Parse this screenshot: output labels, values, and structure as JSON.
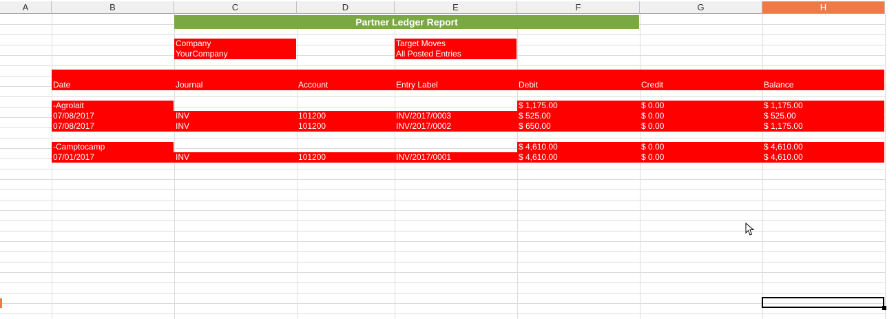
{
  "columns": [
    {
      "letter": "A",
      "active": false
    },
    {
      "letter": "B",
      "active": false
    },
    {
      "letter": "C",
      "active": false
    },
    {
      "letter": "D",
      "active": false
    },
    {
      "letter": "E",
      "active": false
    },
    {
      "letter": "F",
      "active": false
    },
    {
      "letter": "G",
      "active": false
    },
    {
      "letter": "H",
      "active": true
    }
  ],
  "report": {
    "title": "Partner Ledger Report",
    "company_label": "Company",
    "company_value": "YourCompany",
    "target_moves_label": "Target Moves",
    "target_moves_value": "All Posted Entries"
  },
  "table": {
    "headers": [
      "Date",
      "Journal",
      "Account",
      "Entry Label",
      "Debit",
      "Credit",
      "Balance"
    ],
    "partners": [
      {
        "name": "-Agrolait",
        "debit": "$ 1,175.00",
        "credit": "$ 0.00",
        "balance": "$ 1,175.00",
        "entries": [
          {
            "date": "07/08/2017",
            "journal": "INV",
            "account": "101200",
            "label": "INV/2017/0003",
            "debit": "$ 525.00",
            "credit": "$ 0.00",
            "balance": "$ 525.00"
          },
          {
            "date": "07/08/2017",
            "journal": "INV",
            "account": "101200",
            "label": "INV/2017/0002",
            "debit": "$ 650.00",
            "credit": "$ 0.00",
            "balance": "$ 1,175.00"
          }
        ]
      },
      {
        "name": "-Camptocamp",
        "debit": "$ 4,610.00",
        "credit": "$ 0.00",
        "balance": "$ 4,610.00",
        "entries": [
          {
            "date": "07/01/2017",
            "journal": "INV",
            "account": "101200",
            "label": "INV/2017/0001",
            "debit": "$ 4,610.00",
            "credit": "$ 0.00",
            "balance": "$ 4,610.00"
          }
        ]
      }
    ]
  }
}
